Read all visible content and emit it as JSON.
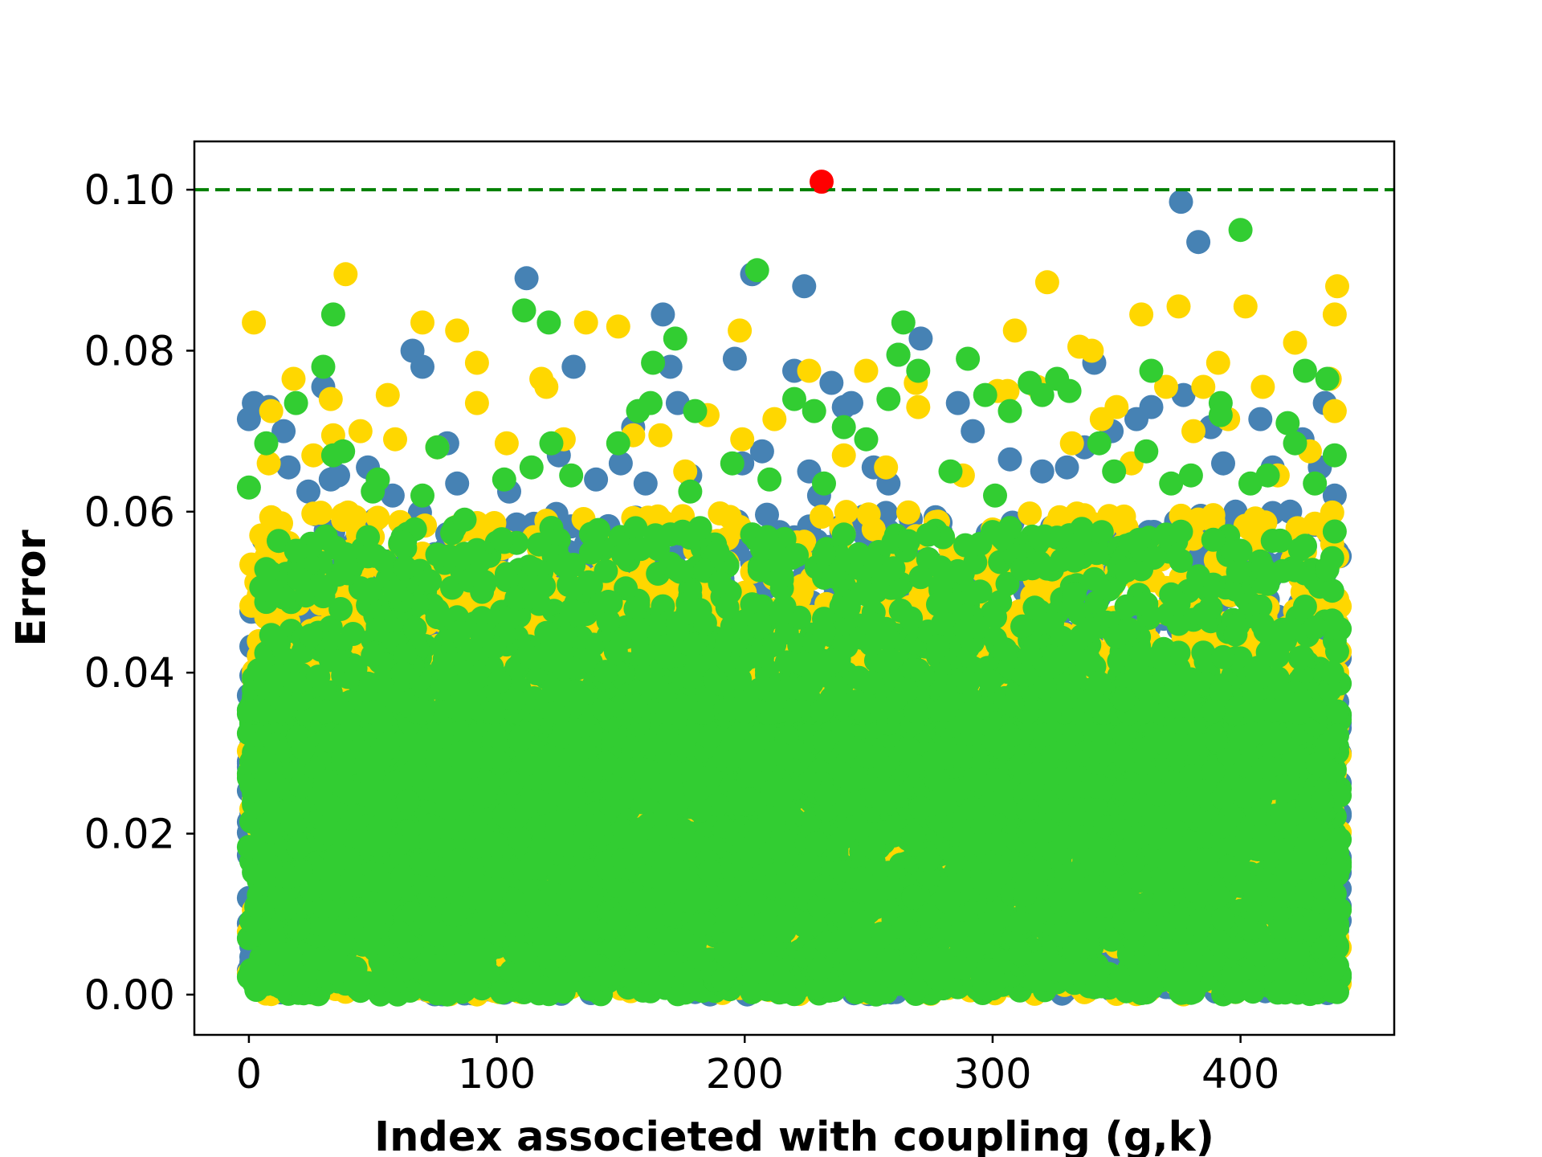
{
  "chart_data": {
    "type": "scatter",
    "title": "",
    "xlabel": "Index associeted with coupling (g,k)",
    "ylabel": "Error",
    "xlim": [
      -22,
      462
    ],
    "ylim": [
      -0.005,
      0.106
    ],
    "x_ticks": [
      0,
      100,
      200,
      300,
      400
    ],
    "x_tick_labels": [
      "0",
      "100",
      "200",
      "300",
      "400"
    ],
    "y_ticks": [
      0.0,
      0.02,
      0.04,
      0.06,
      0.08,
      0.1
    ],
    "y_tick_labels": [
      "0.00",
      "0.02",
      "0.04",
      "0.06",
      "0.08",
      "0.10"
    ],
    "grid": false,
    "legend": "none",
    "x_range_of_indices": [
      0,
      440
    ],
    "threshold_line": {
      "y": 0.1,
      "style": "dashed",
      "color": "#008000"
    },
    "bulk_y_max": {
      "blue": 0.035,
      "yellow": 0.04,
      "green": 0.035
    },
    "series": [
      {
        "color": "#4682B4",
        "points": [
          [
            0,
            0.0715
          ],
          [
            2,
            0.0735
          ],
          [
            8,
            0.073
          ],
          [
            14,
            0.07
          ],
          [
            16,
            0.0655
          ],
          [
            24,
            0.0625
          ],
          [
            30,
            0.0755
          ],
          [
            33,
            0.064
          ],
          [
            36,
            0.0645
          ],
          [
            48,
            0.0655
          ],
          [
            52,
            0.064
          ],
          [
            58,
            0.062
          ],
          [
            66,
            0.08
          ],
          [
            70,
            0.078
          ],
          [
            80,
            0.0685
          ],
          [
            84,
            0.0635
          ],
          [
            105,
            0.0625
          ],
          [
            112,
            0.089
          ],
          [
            125,
            0.067
          ],
          [
            129,
            0.055
          ],
          [
            131,
            0.078
          ],
          [
            140,
            0.064
          ],
          [
            150,
            0.066
          ],
          [
            155,
            0.0705
          ],
          [
            160,
            0.0635
          ],
          [
            167,
            0.0845
          ],
          [
            170,
            0.078
          ],
          [
            173,
            0.0735
          ],
          [
            178,
            0.0645
          ],
          [
            196,
            0.079
          ],
          [
            199,
            0.066
          ],
          [
            203,
            0.0895
          ],
          [
            207,
            0.0675
          ],
          [
            220,
            0.0775
          ],
          [
            224,
            0.088
          ],
          [
            226,
            0.065
          ],
          [
            230,
            0.062
          ],
          [
            235,
            0.076
          ],
          [
            240,
            0.073
          ],
          [
            243,
            0.0735
          ],
          [
            252,
            0.0655
          ],
          [
            258,
            0.0635
          ],
          [
            262,
            0.0795
          ],
          [
            271,
            0.0815
          ],
          [
            286,
            0.0735
          ],
          [
            292,
            0.07
          ],
          [
            307,
            0.0665
          ],
          [
            320,
            0.065
          ],
          [
            330,
            0.0655
          ],
          [
            337,
            0.068
          ],
          [
            341,
            0.0785
          ],
          [
            348,
            0.07
          ],
          [
            358,
            0.0715
          ],
          [
            364,
            0.073
          ],
          [
            376,
            0.0985
          ],
          [
            377,
            0.0745
          ],
          [
            383,
            0.0935
          ],
          [
            388,
            0.0705
          ],
          [
            393,
            0.066
          ],
          [
            398,
            0.06
          ],
          [
            408,
            0.0715
          ],
          [
            413,
            0.0655
          ],
          [
            420,
            0.06
          ],
          [
            425,
            0.069
          ],
          [
            432,
            0.0655
          ],
          [
            434,
            0.0735
          ],
          [
            438,
            0.062
          ]
        ]
      },
      {
        "color": "#FFD700",
        "points": [
          [
            2,
            0.0835
          ],
          [
            8,
            0.066
          ],
          [
            9,
            0.0725
          ],
          [
            18,
            0.0765
          ],
          [
            26,
            0.067
          ],
          [
            33,
            0.074
          ],
          [
            34,
            0.0695
          ],
          [
            39,
            0.0895
          ],
          [
            45,
            0.07
          ],
          [
            56,
            0.0745
          ],
          [
            59,
            0.069
          ],
          [
            70,
            0.0835
          ],
          [
            76,
            0.068
          ],
          [
            84,
            0.0825
          ],
          [
            92,
            0.0785
          ],
          [
            92,
            0.0735
          ],
          [
            104,
            0.0685
          ],
          [
            118,
            0.0765
          ],
          [
            120,
            0.0755
          ],
          [
            127,
            0.069
          ],
          [
            136,
            0.0835
          ],
          [
            149,
            0.083
          ],
          [
            155,
            0.0695
          ],
          [
            166,
            0.0695
          ],
          [
            176,
            0.065
          ],
          [
            185,
            0.072
          ],
          [
            198,
            0.0825
          ],
          [
            199,
            0.069
          ],
          [
            212,
            0.0715
          ],
          [
            226,
            0.0775
          ],
          [
            240,
            0.067
          ],
          [
            249,
            0.0775
          ],
          [
            257,
            0.0655
          ],
          [
            269,
            0.076
          ],
          [
            270,
            0.073
          ],
          [
            288,
            0.0645
          ],
          [
            302,
            0.075
          ],
          [
            306,
            0.075
          ],
          [
            309,
            0.0825
          ],
          [
            318,
            0.0755
          ],
          [
            322,
            0.0885
          ],
          [
            332,
            0.0685
          ],
          [
            335,
            0.0805
          ],
          [
            340,
            0.08
          ],
          [
            344,
            0.0715
          ],
          [
            350,
            0.073
          ],
          [
            356,
            0.066
          ],
          [
            360,
            0.0845
          ],
          [
            370,
            0.0755
          ],
          [
            375,
            0.0855
          ],
          [
            381,
            0.07
          ],
          [
            385,
            0.0755
          ],
          [
            391,
            0.0785
          ],
          [
            395,
            0.0715
          ],
          [
            402,
            0.0855
          ],
          [
            409,
            0.0755
          ],
          [
            415,
            0.0645
          ],
          [
            422,
            0.081
          ],
          [
            428,
            0.0675
          ],
          [
            436,
            0.0765
          ],
          [
            438,
            0.0725
          ],
          [
            438,
            0.0845
          ],
          [
            439,
            0.088
          ]
        ]
      },
      {
        "color": "#32CD32",
        "points": [
          [
            0,
            0.063
          ],
          [
            7,
            0.0685
          ],
          [
            19,
            0.0735
          ],
          [
            30,
            0.078
          ],
          [
            34,
            0.0845
          ],
          [
            34,
            0.067
          ],
          [
            38,
            0.0675
          ],
          [
            50,
            0.0625
          ],
          [
            52,
            0.064
          ],
          [
            70,
            0.062
          ],
          [
            76,
            0.068
          ],
          [
            87,
            0.059
          ],
          [
            103,
            0.064
          ],
          [
            111,
            0.085
          ],
          [
            114,
            0.0655
          ],
          [
            121,
            0.0835
          ],
          [
            122,
            0.0685
          ],
          [
            130,
            0.0645
          ],
          [
            149,
            0.0685
          ],
          [
            157,
            0.0725
          ],
          [
            162,
            0.0735
          ],
          [
            163,
            0.0785
          ],
          [
            172,
            0.0815
          ],
          [
            178,
            0.0625
          ],
          [
            180,
            0.0725
          ],
          [
            195,
            0.066
          ],
          [
            205,
            0.09
          ],
          [
            210,
            0.064
          ],
          [
            220,
            0.074
          ],
          [
            228,
            0.0725
          ],
          [
            232,
            0.0635
          ],
          [
            240,
            0.0705
          ],
          [
            249,
            0.069
          ],
          [
            258,
            0.074
          ],
          [
            262,
            0.0795
          ],
          [
            264,
            0.0835
          ],
          [
            270,
            0.0775
          ],
          [
            283,
            0.065
          ],
          [
            290,
            0.079
          ],
          [
            297,
            0.0745
          ],
          [
            301,
            0.062
          ],
          [
            307,
            0.0725
          ],
          [
            315,
            0.076
          ],
          [
            320,
            0.0745
          ],
          [
            326,
            0.0765
          ],
          [
            331,
            0.075
          ],
          [
            343,
            0.0685
          ],
          [
            349,
            0.065
          ],
          [
            362,
            0.0675
          ],
          [
            364,
            0.0775
          ],
          [
            372,
            0.0635
          ],
          [
            380,
            0.0645
          ],
          [
            392,
            0.0735
          ],
          [
            392,
            0.072
          ],
          [
            400,
            0.095
          ],
          [
            404,
            0.0635
          ],
          [
            411,
            0.0645
          ],
          [
            419,
            0.071
          ],
          [
            422,
            0.0685
          ],
          [
            426,
            0.0775
          ],
          [
            430,
            0.0635
          ],
          [
            435,
            0.0765
          ],
          [
            438,
            0.067
          ]
        ]
      },
      {
        "color": "#FF0000",
        "points": [
          [
            231,
            0.101
          ]
        ]
      }
    ]
  }
}
